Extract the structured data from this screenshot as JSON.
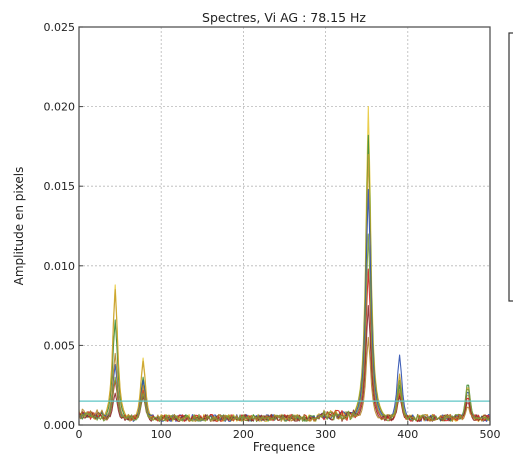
{
  "chart_data": {
    "type": "line",
    "title": "Spectres, Vi AG : 78.15 Hz",
    "xlabel": "Frequence",
    "ylabel": "Amplitude en pixels",
    "xlim": [
      0,
      500
    ],
    "ylim": [
      0,
      0.025
    ],
    "xticks": [
      0,
      100,
      200,
      300,
      400,
      500
    ],
    "xtick_labels": [
      "0",
      "100",
      "200",
      "300",
      "400",
      "500"
    ],
    "yticks": [
      0.0,
      0.005,
      0.01,
      0.015,
      0.02,
      0.025
    ],
    "ytick_labels": [
      "0.000",
      "0.005",
      "0.010",
      "0.015",
      "0.020",
      "0.025"
    ],
    "grid": true,
    "legend": "right, empty box partially visible",
    "threshold": {
      "y": 0.0015,
      "color": "#5fc6c6"
    },
    "series": [
      {
        "color": "#e8c93a",
        "peaks": [
          [
            44,
            0.0088
          ],
          [
            78,
            0.0042
          ],
          [
            352,
            0.02
          ],
          [
            390,
            0.003
          ],
          [
            473,
            0.002
          ]
        ]
      },
      {
        "color": "#3a8a2f",
        "peaks": [
          [
            44,
            0.0066
          ],
          [
            78,
            0.003
          ],
          [
            352,
            0.0182
          ],
          [
            390,
            0.0025
          ],
          [
            473,
            0.0027
          ]
        ]
      },
      {
        "color": "#c8a030",
        "peaks": [
          [
            44,
            0.0085
          ],
          [
            78,
            0.004
          ],
          [
            352,
            0.017
          ],
          [
            390,
            0.0032
          ],
          [
            473,
            0.0025
          ]
        ]
      },
      {
        "color": "#2b4fb0",
        "peaks": [
          [
            44,
            0.0038
          ],
          [
            78,
            0.0028
          ],
          [
            352,
            0.0148
          ],
          [
            390,
            0.0044
          ],
          [
            473,
            0.0022
          ]
        ]
      },
      {
        "color": "#d02020",
        "peaks": [
          [
            44,
            0.0028
          ],
          [
            78,
            0.0022
          ],
          [
            352,
            0.0098
          ],
          [
            390,
            0.002
          ],
          [
            473,
            0.0018
          ]
        ]
      },
      {
        "color": "#8a2a2a",
        "peaks": [
          [
            44,
            0.002
          ],
          [
            78,
            0.0018
          ],
          [
            352,
            0.0075
          ],
          [
            390,
            0.0018
          ],
          [
            473,
            0.0015
          ]
        ]
      },
      {
        "color": "#b2852a",
        "peaks": [
          [
            44,
            0.0045
          ],
          [
            78,
            0.0025
          ],
          [
            352,
            0.0055
          ],
          [
            390,
            0.0022
          ],
          [
            473,
            0.0012
          ]
        ]
      },
      {
        "color": "#7a9a3a",
        "peaks": [
          [
            44,
            0.003
          ],
          [
            78,
            0.002
          ],
          [
            352,
            0.012
          ],
          [
            390,
            0.0028
          ],
          [
            473,
            0.0024
          ]
        ]
      }
    ]
  }
}
